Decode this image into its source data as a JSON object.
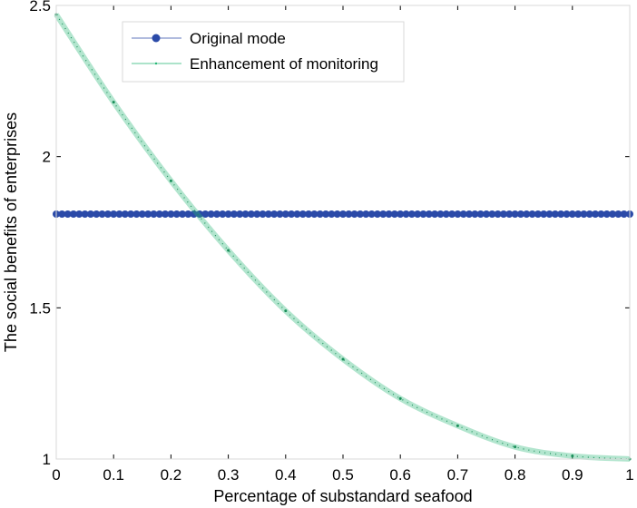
{
  "chart_data": {
    "type": "line",
    "title": "",
    "xlabel": "Percentage of substandard seafood",
    "ylabel": "The social benefits of enterprises",
    "xlim": [
      0,
      1
    ],
    "ylim": [
      1,
      2.5
    ],
    "x_ticks": [
      "0",
      "0.1",
      "0.2",
      "0.3",
      "0.4",
      "0.5",
      "0.6",
      "0.7",
      "0.8",
      "0.9",
      "1"
    ],
    "y_ticks": [
      "1",
      "1.5",
      "2",
      "2.5"
    ],
    "grid": false,
    "legend_position": "top-left",
    "series": [
      {
        "name": "Original mode",
        "color": "#2b4aa8",
        "marker": "circle",
        "x_range": [
          0,
          1
        ],
        "points": 101,
        "y": 1.81
      },
      {
        "name": "Enhancement of monitoring",
        "color": "#22b573",
        "marker": "dot",
        "x": [
          0,
          0.1,
          0.2,
          0.3,
          0.4,
          0.5,
          0.6,
          0.7,
          0.8,
          0.9,
          1
        ],
        "values": [
          2.47,
          2.18,
          1.92,
          1.69,
          1.49,
          1.33,
          1.2,
          1.11,
          1.04,
          1.01,
          1.0
        ]
      }
    ]
  }
}
